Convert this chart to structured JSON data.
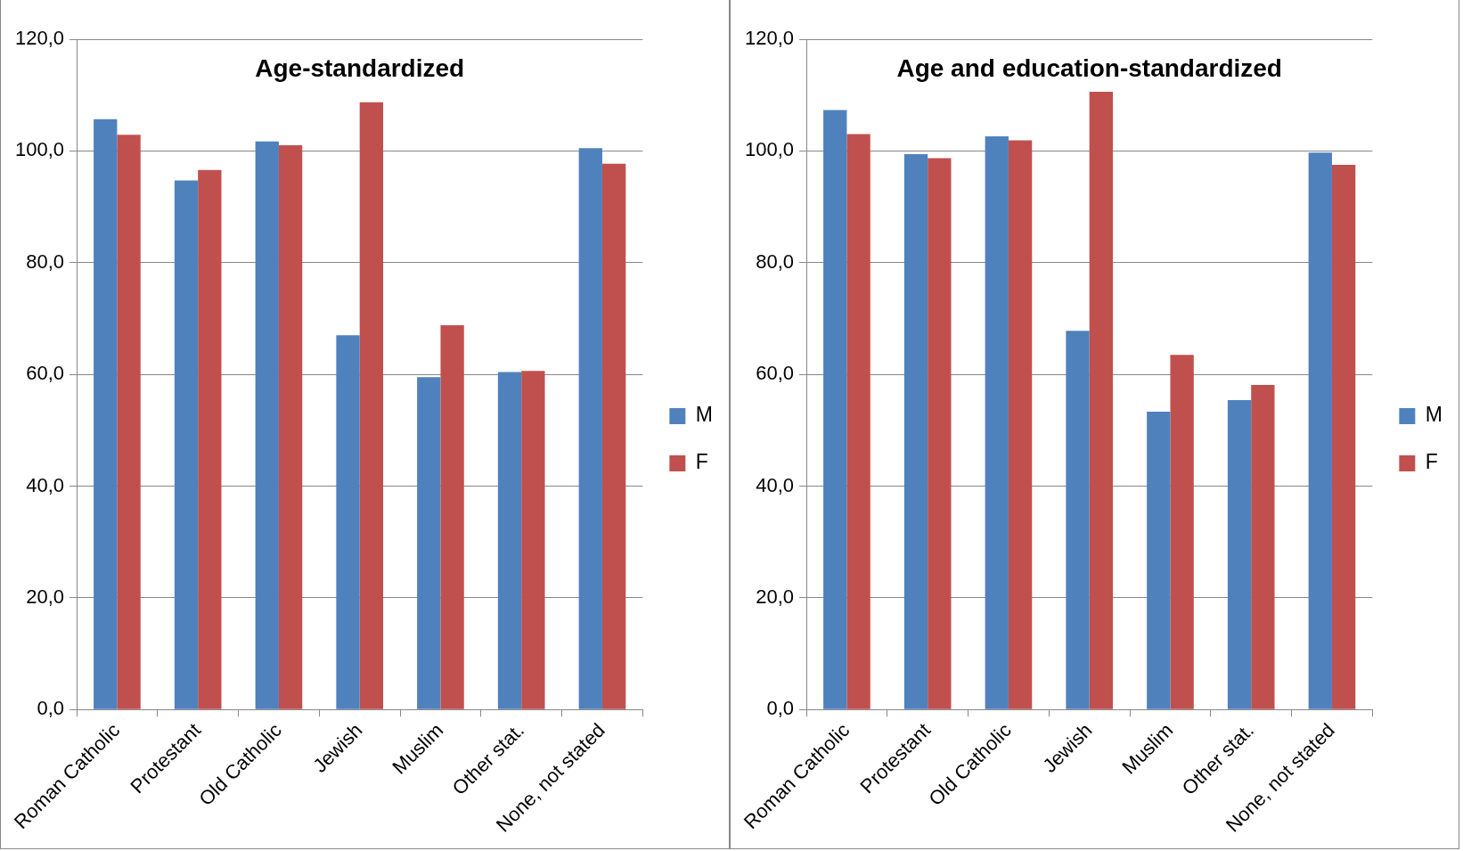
{
  "chart_data": [
    {
      "type": "bar",
      "title": "Age-standardized",
      "categories": [
        "Roman Catholic",
        "Protestant",
        "Old Catholic",
        "Jewish",
        "Muslim",
        "Other stat.",
        "None, not stated"
      ],
      "series": [
        {
          "name": "M",
          "color": "#4f81bd",
          "values": [
            105.7,
            94.7,
            101.7,
            67.0,
            59.5,
            60.4,
            100.5
          ]
        },
        {
          "name": "F",
          "color": "#c0504d",
          "values": [
            102.9,
            96.6,
            101.0,
            108.7,
            68.8,
            60.6,
            97.7
          ]
        }
      ],
      "ylim": [
        0,
        120
      ],
      "yticks": [
        {
          "value": 0,
          "label": "0,0"
        },
        {
          "value": 20,
          "label": "20,0"
        },
        {
          "value": 40,
          "label": "40,0"
        },
        {
          "value": 60,
          "label": "60,0"
        },
        {
          "value": 80,
          "label": "80,0"
        },
        {
          "value": 100,
          "label": "100,0"
        },
        {
          "value": 120,
          "label": "120,0"
        }
      ],
      "grid": "y",
      "legend": "right"
    },
    {
      "type": "bar",
      "title": "Age and education-standardized",
      "categories": [
        "Roman Catholic",
        "Protestant",
        "Old Catholic",
        "Jewish",
        "Muslim",
        "Other stat.",
        "None, not stated"
      ],
      "series": [
        {
          "name": "M",
          "color": "#4f81bd",
          "values": [
            107.3,
            99.4,
            102.6,
            67.8,
            53.3,
            55.4,
            99.7
          ]
        },
        {
          "name": "F",
          "color": "#c0504d",
          "values": [
            103.0,
            98.7,
            101.9,
            110.6,
            63.5,
            58.1,
            97.5
          ]
        }
      ],
      "ylim": [
        0,
        120
      ],
      "yticks": [
        {
          "value": 0,
          "label": "0,0"
        },
        {
          "value": 20,
          "label": "20,0"
        },
        {
          "value": 40,
          "label": "40,0"
        },
        {
          "value": 60,
          "label": "60,0"
        },
        {
          "value": 80,
          "label": "80,0"
        },
        {
          "value": 100,
          "label": "100,0"
        },
        {
          "value": 120,
          "label": "120,0"
        }
      ],
      "grid": "y",
      "legend": "right"
    }
  ]
}
